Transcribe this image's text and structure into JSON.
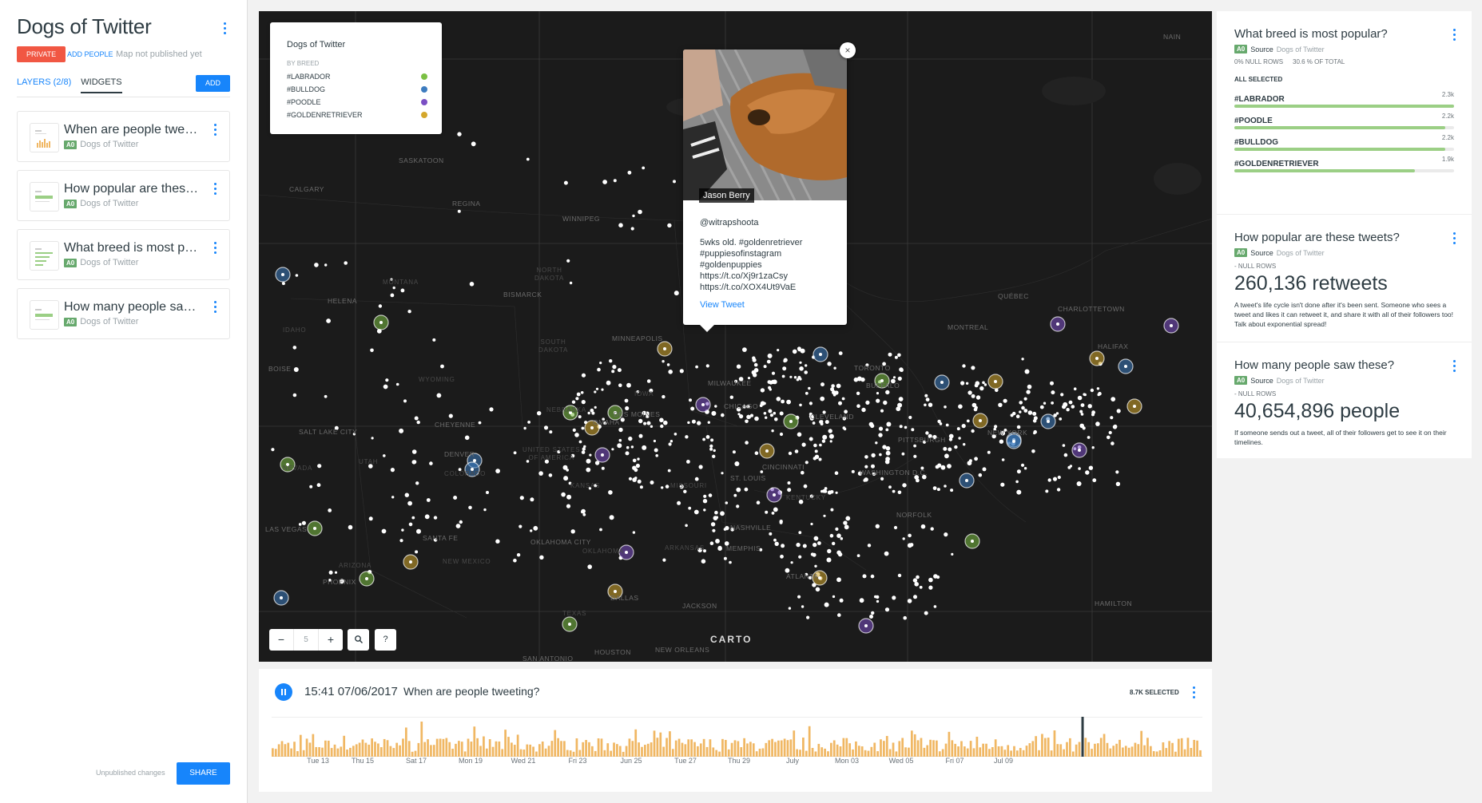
{
  "sidebar": {
    "title": "Dogs of Twitter",
    "privacy": "PRIVATE",
    "add_people": "ADD PEOPLE",
    "publish_status": "Map not published yet",
    "tabs": [
      {
        "label": "LAYERS (2/8)"
      },
      {
        "label": "WIDGETS"
      }
    ],
    "add_label": "ADD",
    "widgets": [
      {
        "title": "When are people tweeting?",
        "badge": "A0",
        "source": "Dogs of Twitter"
      },
      {
        "title": "How popular are these tweets?",
        "badge": "A0",
        "source": "Dogs of Twitter"
      },
      {
        "title": "What breed is most popular?",
        "badge": "A0",
        "source": "Dogs of Twitter"
      },
      {
        "title": "How many people saw these?",
        "badge": "A0",
        "source": "Dogs of Twitter"
      }
    ],
    "unpublished": "Unpublished changes",
    "share_label": "SHARE"
  },
  "map": {
    "legend": {
      "title": "Dogs of Twitter",
      "subtitle": "BY BREED",
      "items": [
        {
          "label": "#LABRADOR",
          "color": "#7bc043"
        },
        {
          "label": "#BULLDOG",
          "color": "#3d7cbf"
        },
        {
          "label": "#POODLE",
          "color": "#7b4fc4"
        },
        {
          "label": "#GOLDENRETRIEVER",
          "color": "#d4a72c"
        }
      ]
    },
    "popup": {
      "author": "Jason Berry",
      "handle": "@witrapshoota",
      "text": "5wks old. #goldenretriever\n#puppiesofinstagram\n#goldenpuppies\nhttps://t.co/Xj9r1zaCsy\nhttps://t.co/XOX4Ut9VaE",
      "link": "View Tweet",
      "close": "×"
    },
    "zoom": {
      "minus": "−",
      "level": "5",
      "plus": "+"
    },
    "search_icon": "search-icon",
    "help": "?",
    "attribution": "CARTO",
    "cities": [
      {
        "name": "SASKATOON"
      },
      {
        "name": "CALGARY"
      },
      {
        "name": "REGINA"
      },
      {
        "name": "WINNIPEG"
      },
      {
        "name": "HELENA"
      },
      {
        "name": "BISMARCK"
      },
      {
        "name": "MINNEAPOLIS"
      },
      {
        "name": "BOISE"
      },
      {
        "name": "CHEYENNE"
      },
      {
        "name": "SALT LAKE CITY"
      },
      {
        "name": "DENVER"
      },
      {
        "name": "DES MOINES"
      },
      {
        "name": "OMAHA"
      },
      {
        "name": "CHICAGO"
      },
      {
        "name": "MILWAUKEE"
      },
      {
        "name": "TORONTO"
      },
      {
        "name": "MONTREAL"
      },
      {
        "name": "QUÉBEC"
      },
      {
        "name": "CHARLOTTETOWN"
      },
      {
        "name": "HALIFAX"
      },
      {
        "name": "NEW YORK"
      },
      {
        "name": "PITTSBURGH"
      },
      {
        "name": "WASHINGTON D.C."
      },
      {
        "name": "CLEVELAND"
      },
      {
        "name": "CINCINNATI"
      },
      {
        "name": "ST. LOUIS"
      },
      {
        "name": "NASHVILLE"
      },
      {
        "name": "MEMPHIS"
      },
      {
        "name": "ATLANTA"
      },
      {
        "name": "NORFOLK"
      },
      {
        "name": "LAS VEGAS"
      },
      {
        "name": "PHOENIX"
      },
      {
        "name": "SANTA FE"
      },
      {
        "name": "OKLAHOMA CITY"
      },
      {
        "name": "DALLAS"
      },
      {
        "name": "HOUSTON"
      },
      {
        "name": "SAN ANTONIO"
      },
      {
        "name": "NEW ORLEANS"
      },
      {
        "name": "JACKSON"
      },
      {
        "name": "HAMILTON"
      },
      {
        "name": "NAIN"
      },
      {
        "name": "BUFFALO"
      }
    ],
    "regions": [
      {
        "name": "MONTANA"
      },
      {
        "name": "NORTH\nDAKOTA"
      },
      {
        "name": "SOUTH\nDAKOTA"
      },
      {
        "name": "WYOMING"
      },
      {
        "name": "NEBRASKA"
      },
      {
        "name": "KANSAS"
      },
      {
        "name": "COLORADO"
      },
      {
        "name": "UTAH"
      },
      {
        "name": "NEVADA"
      },
      {
        "name": "ARIZONA"
      },
      {
        "name": "NEW MEXICO"
      },
      {
        "name": "TEXAS"
      },
      {
        "name": "OKLAHOMA"
      },
      {
        "name": "ARKANSAS"
      },
      {
        "name": "KENTUCKY"
      },
      {
        "name": "IDAHO"
      },
      {
        "name": "UNITED STATES\nOF AMERICA"
      },
      {
        "name": "IOWA"
      },
      {
        "name": "MISSOURI"
      }
    ]
  },
  "right": {
    "breed": {
      "title": "What breed is most popular?",
      "badge": "A0",
      "source_label": "Source",
      "source": "Dogs of Twitter",
      "null_rows": "0% NULL ROWS",
      "total": "30.6 % OF TOTAL",
      "all_selected": "ALL SELECTED",
      "categories": [
        {
          "name": "#LABRADOR",
          "value": "2.3k",
          "fraction": 1.0
        },
        {
          "name": "#POODLE",
          "value": "2.2k",
          "fraction": 0.96
        },
        {
          "name": "#BULLDOG",
          "value": "2.2k",
          "fraction": 0.96
        },
        {
          "name": "#GOLDENRETRIEVER",
          "value": "1.9k",
          "fraction": 0.82
        }
      ]
    },
    "retweets": {
      "title": "How popular are these tweets?",
      "badge": "A0",
      "source_label": "Source",
      "source": "Dogs of Twitter",
      "null_rows": "- NULL ROWS",
      "value": "260,136 retweets",
      "description": "A tweet's life cycle isn't done after it's been sent. Someone who sees a tweet and likes it can retweet it, and share it with all of their followers too! Talk about exponential spread!"
    },
    "reach": {
      "title": "How many people saw these?",
      "badge": "A0",
      "source_label": "Source",
      "source": "Dogs of Twitter",
      "null_rows": "- NULL ROWS",
      "value": "40,654,896 people",
      "description": "If someone sends out a tweet, all of their followers get to see it on their timelines."
    }
  },
  "timeline": {
    "time": "15:41",
    "date": "07/06/2017",
    "title": "When are people tweeting?",
    "selected": "8.7K SELECTED",
    "bar_color": "#f0b763",
    "selection_position": 0.87,
    "labels": [
      "Tue 13",
      "Thu 15",
      "Sat 17",
      "Mon 19",
      "Wed 21",
      "Fri 23",
      "Jun 25",
      "Tue 27",
      "Thu 29",
      "July",
      "Mon 03",
      "Wed 05",
      "Fri 07",
      "Jul 09"
    ]
  },
  "colors": {
    "accent": "#1785fb",
    "private": "#f15743",
    "source_badge": "#67a96d",
    "category_bar": "#9bcf85",
    "map_background": "#1b1b1b"
  }
}
